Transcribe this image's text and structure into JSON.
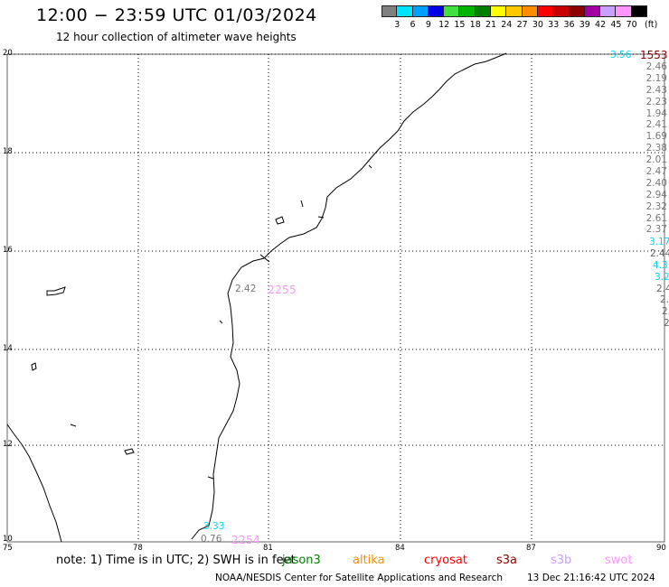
{
  "header": {
    "title": "12:00 − 23:59 UTC 01/03/2024",
    "subtitle": "12 hour collection of altimeter wave heights"
  },
  "color_scale": {
    "labels": [
      "3",
      "6",
      "9",
      "12",
      "15",
      "18",
      "21",
      "24",
      "27",
      "30",
      "33",
      "36",
      "39",
      "42",
      "45",
      "70"
    ],
    "unit": "(ft)",
    "colors": [
      "#808080",
      "#00e5ff",
      "#00a0ff",
      "#0000e6",
      "#40e040",
      "#00b400",
      "#008000",
      "#ffff00",
      "#ffc800",
      "#ff8c00",
      "#ff0000",
      "#c80000",
      "#8c0000",
      "#a000a0",
      "#c8a0ff",
      "#ff96ff",
      "#000000"
    ]
  },
  "map": {
    "x_ticks": [
      "75",
      "78",
      "81",
      "84",
      "87",
      "90"
    ],
    "y_ticks": [
      "20",
      "18",
      "16",
      "14",
      "12",
      "10"
    ]
  },
  "track": {
    "time_label": "1553",
    "values": [
      "2.46",
      "2.19",
      "2.43",
      "2.23",
      "1.94",
      "2.41",
      "1.69",
      "2.38",
      "2.01",
      "2.47",
      "2.40",
      "2.94",
      "2.32",
      "2.61",
      "2.37"
    ],
    "top_value": "3.56",
    "cyan_values": [
      "3.17",
      "4.3",
      "3.2"
    ],
    "tail_values": [
      "2.44",
      "2.4",
      "2.",
      "2.",
      "2."
    ]
  },
  "labels": {
    "pass1_value": "2.42",
    "pass1_time": "2255",
    "pass2_value_cyan": "3.33",
    "pass2_value": "0.76",
    "pass2_time": "2254"
  },
  "footer": {
    "note": "note: 1) Time is in UTC; 2) SWH is in feet",
    "legend": [
      {
        "name": "jason3",
        "color": "#008000"
      },
      {
        "name": "altika",
        "color": "#ff8c00"
      },
      {
        "name": "cryosat",
        "color": "#ff0000"
      },
      {
        "name": "s3a",
        "color": "#8c0000"
      },
      {
        "name": "s3b",
        "color": "#c8a0ff"
      },
      {
        "name": "swot",
        "color": "#ff96ff"
      }
    ],
    "credit": "NOAA/NESDIS Center for Satellite Applications and Research",
    "timestamp": "13 Dec 21:16:42 UTC 2024"
  }
}
